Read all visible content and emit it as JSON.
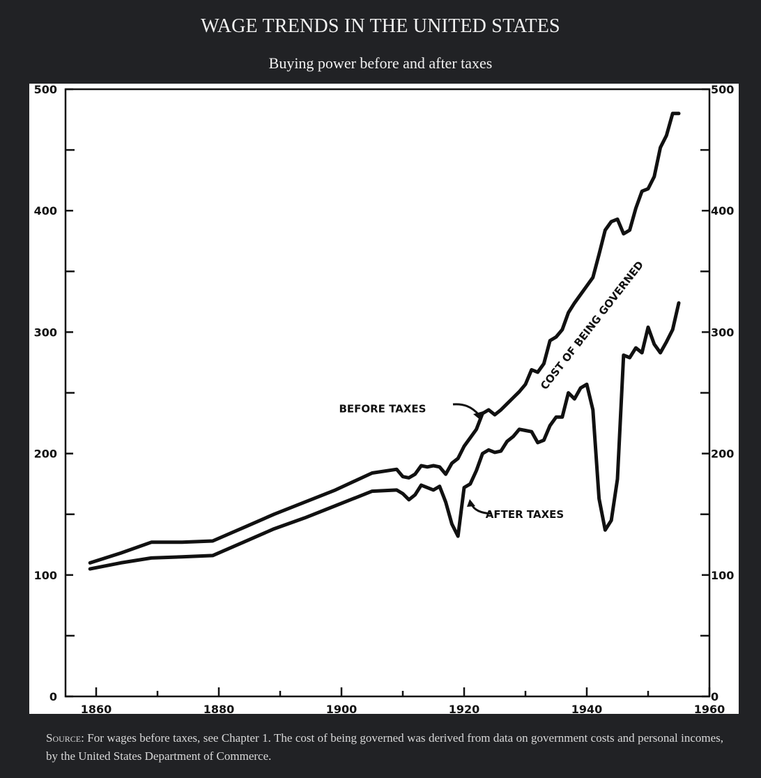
{
  "title": "WAGE TRENDS IN THE UNITED STATES",
  "subtitle": "Buying power before and after taxes",
  "source": {
    "label": "Source:",
    "text": "For wages before taxes, see Chapter 1. The cost of being governed was derived from data on government costs and personal incomes, by the United States Department of Commerce."
  },
  "colors": {
    "background": "#212225",
    "plot_background": "#ffffff",
    "ink": "#111111"
  },
  "chart_data": {
    "type": "line",
    "title": "",
    "xlabel": "",
    "ylabel": "",
    "xlim": [
      1855,
      1960
    ],
    "ylim": [
      0,
      500
    ],
    "x_ticks": [
      1860,
      1880,
      1900,
      1920,
      1940,
      1960
    ],
    "y_ticks": [
      0,
      100,
      200,
      300,
      400,
      500
    ],
    "y_ticks_right": [
      0,
      100,
      200,
      300,
      400,
      500
    ],
    "grid": false,
    "legend": "none",
    "series": [
      {
        "name": "BEFORE TAXES",
        "x": [
          1859,
          1864,
          1869,
          1874,
          1879,
          1884,
          1889,
          1894,
          1899,
          1905,
          1909,
          1910,
          1911,
          1912,
          1913,
          1914,
          1915,
          1916,
          1917,
          1918,
          1919,
          1920,
          1921,
          1922,
          1923,
          1924,
          1925,
          1926,
          1927,
          1928,
          1929,
          1930,
          1931,
          1932,
          1933,
          1934,
          1935,
          1936,
          1937,
          1938,
          1939,
          1940,
          1941,
          1942,
          1943,
          1944,
          1945,
          1946,
          1947,
          1948,
          1949,
          1950,
          1951,
          1952,
          1953,
          1954,
          1955
        ],
        "values": [
          110,
          118,
          127,
          127,
          128,
          139,
          150,
          160,
          170,
          184,
          187,
          181,
          180,
          183,
          190,
          189,
          190,
          189,
          183,
          192,
          196,
          206,
          213,
          220,
          233,
          236,
          232,
          236,
          241,
          246,
          251,
          257,
          269,
          267,
          274,
          293,
          296,
          302,
          316,
          324,
          331,
          338,
          345,
          364,
          384,
          391,
          393,
          381,
          384,
          402,
          416,
          418,
          428,
          452,
          462,
          480,
          480
        ],
        "labels_printed": [
          "BEFORE TAXES"
        ]
      },
      {
        "name": "AFTER TAXES",
        "x": [
          1859,
          1864,
          1869,
          1874,
          1879,
          1884,
          1889,
          1894,
          1899,
          1905,
          1909,
          1910,
          1911,
          1912,
          1913,
          1914,
          1915,
          1916,
          1917,
          1918,
          1919,
          1920,
          1921,
          1922,
          1923,
          1924,
          1925,
          1926,
          1927,
          1928,
          1929,
          1930,
          1931,
          1932,
          1933,
          1934,
          1935,
          1936,
          1937,
          1938,
          1939,
          1940,
          1941,
          1942,
          1943,
          1944,
          1945,
          1946,
          1947,
          1948,
          1949,
          1950,
          1951,
          1952,
          1953,
          1954,
          1955
        ],
        "values": [
          105,
          110,
          114,
          115,
          116,
          127,
          138,
          147,
          157,
          169,
          170,
          167,
          162,
          166,
          174,
          172,
          170,
          173,
          160,
          142,
          132,
          172,
          175,
          186,
          200,
          203,
          201,
          202,
          210,
          214,
          220,
          219,
          218,
          209,
          211,
          223,
          230,
          230,
          250,
          245,
          254,
          257,
          236,
          163,
          137,
          145,
          179,
          281,
          279,
          287,
          283,
          304,
          290,
          283,
          292,
          302,
          324
        ]
      }
    ],
    "annotations": [
      "BEFORE TAXES",
      "AFTER TAXES",
      "COST OF BEING GOVERNED"
    ]
  }
}
